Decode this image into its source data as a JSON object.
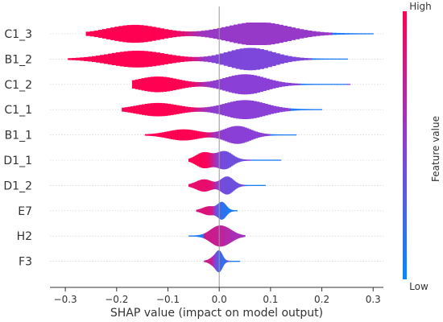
{
  "chart_data": {
    "type": "violin",
    "xlabel": "SHAP value (impact on model output)",
    "xlim": [
      -0.33,
      0.32
    ],
    "xticks": [
      -0.3,
      -0.2,
      -0.1,
      0.0,
      0.1,
      0.2,
      0.3
    ],
    "xtick_labels": [
      "−0.3",
      "−0.2",
      "−0.1",
      "0.0",
      "0.1",
      "0.2",
      "0.3"
    ],
    "colorbar": {
      "label": "Feature value",
      "high_label": "High",
      "low_label": "Low",
      "high_color": "#ff0052",
      "mid_color": "#8a3fd6",
      "low_color": "#008bfb"
    },
    "features": [
      {
        "name": "C1_3",
        "range": [
          -0.26,
          0.3
        ],
        "modes": [
          {
            "x": -0.165,
            "h": 0.75,
            "w": 0.05,
            "c": 0.0
          },
          {
            "x": 0.075,
            "h": 1.0,
            "w": 0.06,
            "c": 0.45
          }
        ],
        "low_tail": [
          0.22,
          0.3
        ]
      },
      {
        "name": "B1_2",
        "range": [
          -0.295,
          0.25
        ],
        "modes": [
          {
            "x": -0.16,
            "h": 0.7,
            "w": 0.055,
            "c": 0.0
          },
          {
            "x": 0.06,
            "h": 0.95,
            "w": 0.045,
            "c": 0.55
          }
        ],
        "low_tail": [
          0.18,
          0.25
        ]
      },
      {
        "name": "C1_2",
        "range": [
          -0.17,
          0.255
        ],
        "modes": [
          {
            "x": -0.12,
            "h": 0.65,
            "w": 0.04,
            "c": 0.0
          },
          {
            "x": 0.05,
            "h": 0.85,
            "w": 0.04,
            "c": 0.5
          }
        ],
        "low_tail": [
          0.16,
          0.25
        ]
      },
      {
        "name": "C1_1",
        "range": [
          -0.19,
          0.2
        ],
        "modes": [
          {
            "x": -0.12,
            "h": 0.55,
            "w": 0.04,
            "c": 0.0
          },
          {
            "x": 0.05,
            "h": 0.8,
            "w": 0.04,
            "c": 0.5
          }
        ],
        "low_tail": [
          0.14,
          0.2
        ]
      },
      {
        "name": "B1_1",
        "range": [
          -0.145,
          0.15
        ],
        "modes": [
          {
            "x": -0.07,
            "h": 0.45,
            "w": 0.03,
            "c": 0.0
          },
          {
            "x": 0.035,
            "h": 0.75,
            "w": 0.025,
            "c": 0.5
          }
        ],
        "low_tail": [
          0.1,
          0.15
        ]
      },
      {
        "name": "D1_1",
        "range": [
          -0.06,
          0.12
        ],
        "modes": [
          {
            "x": -0.03,
            "h": 0.65,
            "w": 0.015,
            "c": 0.0
          },
          {
            "x": 0.01,
            "h": 0.75,
            "w": 0.015,
            "c": 0.6
          }
        ],
        "low_tail": [
          0.06,
          0.12
        ]
      },
      {
        "name": "D1_2",
        "range": [
          -0.06,
          0.09
        ],
        "modes": [
          {
            "x": -0.03,
            "h": 0.5,
            "w": 0.015,
            "c": 0.1
          },
          {
            "x": 0.015,
            "h": 0.75,
            "w": 0.012,
            "c": 0.6
          }
        ],
        "low_tail": [
          0.05,
          0.09
        ]
      },
      {
        "name": "E7",
        "range": [
          -0.045,
          0.035
        ],
        "modes": [
          {
            "x": -0.02,
            "h": 0.35,
            "w": 0.012,
            "c": 0.15
          },
          {
            "x": 0.005,
            "h": 0.7,
            "w": 0.008,
            "c": 0.85
          }
        ],
        "low_tail": [
          0.015,
          0.035
        ]
      },
      {
        "name": "H2",
        "range": [
          -0.06,
          0.05
        ],
        "modes": [
          {
            "x": -0.005,
            "h": 0.65,
            "w": 0.015,
            "c": 0.2
          },
          {
            "x": 0.015,
            "h": 0.45,
            "w": 0.015,
            "c": 0.4
          }
        ],
        "low_tail": [
          -0.06,
          -0.03
        ]
      },
      {
        "name": "F3",
        "range": [
          -0.03,
          0.04
        ],
        "modes": [
          {
            "x": -0.01,
            "h": 0.35,
            "w": 0.008,
            "c": 0.2
          },
          {
            "x": 0.0,
            "h": 0.75,
            "w": 0.006,
            "c": 0.85
          }
        ],
        "low_tail": [
          0.02,
          0.04
        ]
      }
    ]
  }
}
